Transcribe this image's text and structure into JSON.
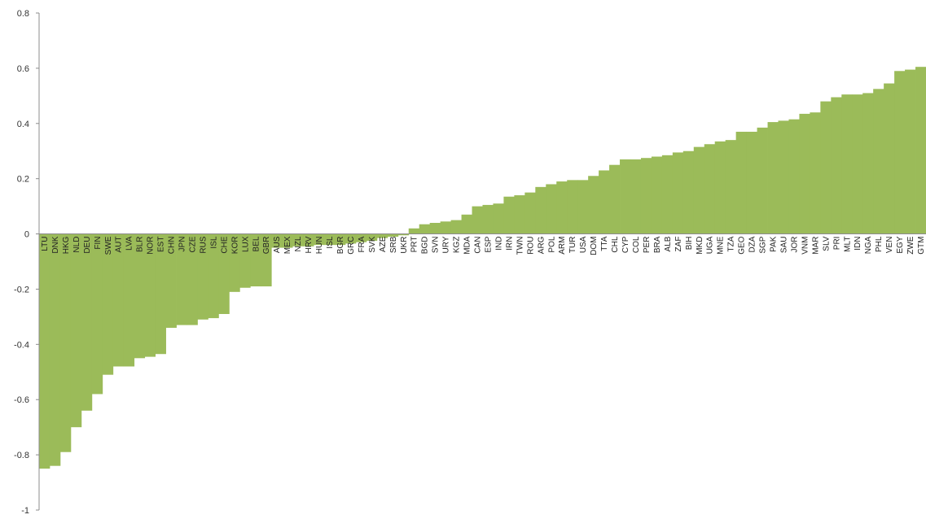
{
  "chart_data": {
    "type": "bar",
    "title": "",
    "xlabel": "",
    "ylabel": "",
    "ylim": [
      -1,
      0.8
    ],
    "yticks": [
      "-1",
      "-0.8",
      "-0.6",
      "-0.4",
      "-0.2",
      "0",
      "0.2",
      "0.4",
      "0.6",
      "0.8"
    ],
    "grid": false,
    "legend": "none",
    "bar_color": "#9bbb59",
    "categories": [
      "LTU",
      "DNK",
      "HKG",
      "NLD",
      "DEU",
      "FIN",
      "SWE",
      "AUT",
      "LVA",
      "BLR",
      "NOR",
      "EST",
      "CHN",
      "JPN",
      "CZE",
      "RUS",
      "ISL",
      "CHE",
      "KOR",
      "LUX",
      "BEL",
      "GBR",
      "AUS",
      "MEX",
      "NZL",
      "HRV",
      "HUN",
      "ISL",
      "BGR",
      "GRC",
      "FRA",
      "SVK",
      "AZE",
      "SRB",
      "UKR",
      "PRT",
      "BGD",
      "SVN",
      "URY",
      "KGZ",
      "MDA",
      "CAN",
      "ESP",
      "IND",
      "IRN",
      "TWN",
      "ROU",
      "ARG",
      "POL",
      "ARM",
      "TUR",
      "USA",
      "DOM",
      "TTA",
      "CHL",
      "CYP",
      "COL",
      "PER",
      "BRA",
      "ALB",
      "ZAF",
      "BIH",
      "MKD",
      "UGA",
      "MNE",
      "TZA",
      "GEO",
      "DZA",
      "SGP",
      "PAK",
      "SAU",
      "JOR",
      "VNM",
      "MAR",
      "SLV",
      "PRI",
      "MLT",
      "IDN",
      "NGA",
      "PHL",
      "VEN",
      "EGY",
      "ZWE",
      "GTM"
    ],
    "values": [
      -0.85,
      -0.84,
      -0.79,
      -0.7,
      -0.64,
      -0.58,
      -0.51,
      -0.48,
      -0.48,
      -0.45,
      -0.445,
      -0.435,
      -0.34,
      -0.33,
      -0.33,
      -0.31,
      -0.305,
      -0.29,
      -0.21,
      -0.195,
      -0.19,
      -0.19,
      -0.05,
      -0.05,
      -0.045,
      -0.045,
      -0.04,
      -0.04,
      -0.04,
      -0.035,
      -0.03,
      -0.025,
      -0.015,
      -0.01,
      -0.005,
      0.02,
      0.035,
      0.04,
      0.045,
      0.05,
      0.07,
      0.1,
      0.105,
      0.11,
      0.135,
      0.14,
      0.15,
      0.17,
      0.18,
      0.19,
      0.195,
      0.195,
      0.21,
      0.23,
      0.25,
      0.27,
      0.27,
      0.275,
      0.28,
      0.285,
      0.295,
      0.3,
      0.315,
      0.325,
      0.335,
      0.34,
      0.37,
      0.37,
      0.385,
      0.405,
      0.41,
      0.415,
      0.435,
      0.44,
      0.48,
      0.495,
      0.505,
      0.505,
      0.51,
      0.525,
      0.545,
      0.59,
      0.595,
      0.605
    ]
  }
}
